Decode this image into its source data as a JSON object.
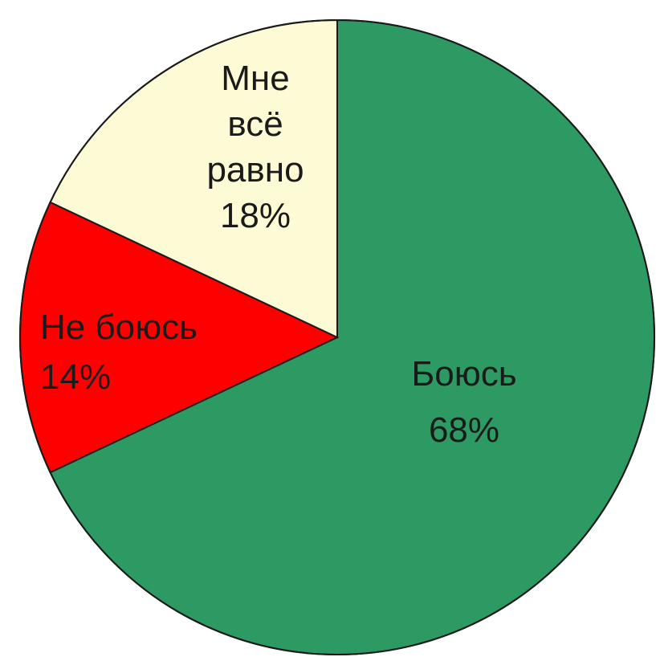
{
  "chart_data": {
    "type": "pie",
    "title": "",
    "slices": [
      {
        "label_lines": [
          "Боюсь"
        ],
        "percent_label": "68%",
        "value": 68,
        "color": "#2e9a63",
        "label_color": "#1a1a1a"
      },
      {
        "label_lines": [
          "Не боюсь"
        ],
        "percent_label": "14%",
        "value": 14,
        "color": "#ff0000",
        "label_color": "#7a0000"
      },
      {
        "label_lines": [
          "Мне",
          "всё",
          "равно"
        ],
        "percent_label": "18%",
        "value": 18,
        "color": "#fdfbd6",
        "label_color": "#1a1a1a"
      }
    ]
  }
}
